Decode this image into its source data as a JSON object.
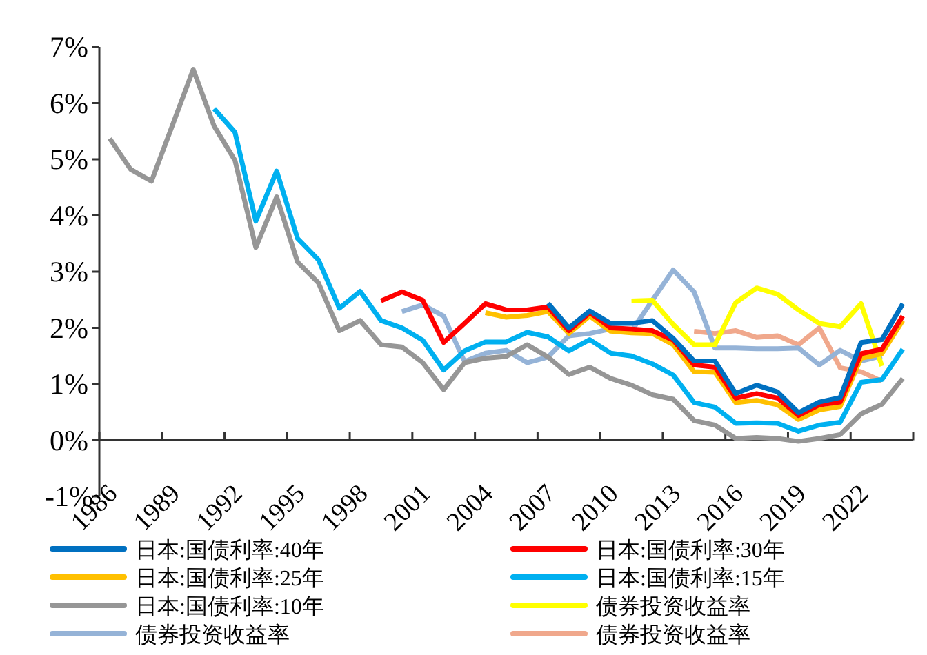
{
  "chart_data": {
    "type": "line",
    "legend": "bottom",
    "grid": false,
    "marker": "none",
    "line_style": "solid",
    "x": [
      1986,
      1987,
      1988,
      1989,
      1990,
      1991,
      1992,
      1993,
      1994,
      1995,
      1996,
      1997,
      1998,
      1999,
      2000,
      2001,
      2002,
      2003,
      2004,
      2005,
      2006,
      2007,
      2008,
      2009,
      2010,
      2011,
      2012,
      2013,
      2014,
      2015,
      2016,
      2017,
      2018,
      2019,
      2020,
      2021,
      2022,
      2023,
      2024
    ],
    "xlim": [
      1985.5,
      2024.5
    ],
    "xticks": [
      {
        "value": 1985.5,
        "label": "1986"
      },
      {
        "value": 1988.5,
        "label": "1989"
      },
      {
        "value": 1991.5,
        "label": "1992"
      },
      {
        "value": 1994.5,
        "label": "1995"
      },
      {
        "value": 1997.5,
        "label": "1998"
      },
      {
        "value": 2000.5,
        "label": "2001"
      },
      {
        "value": 2003.5,
        "label": "2004"
      },
      {
        "value": 2006.5,
        "label": "2007"
      },
      {
        "value": 2009.5,
        "label": "2010"
      },
      {
        "value": 2012.5,
        "label": "2013"
      },
      {
        "value": 2015.5,
        "label": "2016"
      },
      {
        "value": 2018.5,
        "label": "2019"
      },
      {
        "value": 2021.5,
        "label": "2022"
      },
      {
        "value": 2024.5,
        "label": null
      }
    ],
    "ylim": [
      -1,
      7
    ],
    "yticks": [
      {
        "value": -1,
        "label": "-1%"
      },
      {
        "value": 0,
        "label": "0%"
      },
      {
        "value": 1,
        "label": "1%"
      },
      {
        "value": 2,
        "label": "2%"
      },
      {
        "value": 3,
        "label": "3%"
      },
      {
        "value": 4,
        "label": "4%"
      },
      {
        "value": 5,
        "label": "5%"
      },
      {
        "value": 6,
        "label": "6%"
      },
      {
        "value": 7,
        "label": "7%"
      }
    ],
    "series": [
      {
        "name": "日本:国债利率:40年",
        "color": "#0070c0",
        "values": [
          null,
          null,
          null,
          null,
          null,
          null,
          null,
          null,
          null,
          null,
          null,
          null,
          null,
          null,
          null,
          null,
          null,
          null,
          null,
          null,
          null,
          2.44,
          2.0,
          2.3,
          2.08,
          2.08,
          2.13,
          1.81,
          1.41,
          1.41,
          0.83,
          0.98,
          0.86,
          0.49,
          0.68,
          0.76,
          1.74,
          1.79,
          2.43
        ]
      },
      {
        "name": "日本:国债利率:30年",
        "color": "#ff0000",
        "values": [
          null,
          null,
          null,
          null,
          null,
          null,
          null,
          null,
          null,
          null,
          null,
          null,
          null,
          2.48,
          2.64,
          2.49,
          1.74,
          2.08,
          2.43,
          2.32,
          2.32,
          2.37,
          1.95,
          2.27,
          2.0,
          1.98,
          1.95,
          1.78,
          1.34,
          1.3,
          0.75,
          0.83,
          0.75,
          0.44,
          0.63,
          0.68,
          1.54,
          1.62,
          2.21
        ]
      },
      {
        "name": "日本:国债利率:25年",
        "color": "#ffc000",
        "values": [
          null,
          null,
          null,
          null,
          null,
          null,
          null,
          null,
          null,
          null,
          null,
          null,
          null,
          null,
          null,
          null,
          null,
          null,
          2.27,
          2.19,
          2.22,
          2.29,
          1.9,
          2.21,
          1.94,
          1.91,
          1.9,
          1.7,
          1.22,
          1.21,
          0.67,
          0.71,
          0.63,
          0.37,
          0.54,
          0.6,
          1.46,
          1.54,
          2.13
        ]
      },
      {
        "name": "日本:国债利率:15年",
        "color": "#00b0f0",
        "values": [
          null,
          null,
          null,
          null,
          null,
          5.9,
          5.48,
          3.9,
          4.79,
          3.59,
          3.21,
          2.35,
          2.65,
          2.13,
          2.0,
          1.78,
          1.25,
          1.59,
          1.75,
          1.75,
          1.92,
          1.84,
          1.59,
          1.79,
          1.55,
          1.5,
          1.36,
          1.16,
          0.67,
          0.59,
          0.3,
          0.31,
          0.3,
          0.16,
          0.27,
          0.32,
          1.03,
          1.08,
          1.62
        ]
      },
      {
        "name": "日本:国债利率:10年",
        "color": "#969696",
        "values": [
          5.37,
          4.82,
          4.61,
          5.6,
          6.6,
          5.59,
          4.98,
          3.43,
          4.33,
          3.17,
          2.8,
          1.95,
          2.13,
          1.7,
          1.66,
          1.38,
          0.9,
          1.38,
          1.46,
          1.49,
          1.7,
          1.48,
          1.17,
          1.3,
          1.1,
          0.98,
          0.81,
          0.73,
          0.35,
          0.27,
          0.03,
          0.05,
          0.03,
          -0.02,
          0.03,
          0.1,
          0.47,
          0.64,
          1.1
        ]
      },
      {
        "name": "债券投资收益率",
        "color": "#ffff00",
        "values": [
          null,
          null,
          null,
          null,
          null,
          null,
          null,
          null,
          null,
          null,
          null,
          null,
          null,
          null,
          null,
          null,
          null,
          null,
          null,
          null,
          null,
          null,
          null,
          null,
          null,
          2.48,
          2.49,
          2.06,
          1.7,
          1.7,
          2.45,
          2.71,
          2.6,
          2.32,
          2.08,
          2.02,
          2.43,
          1.32,
          null
        ]
      },
      {
        "name": "债券投资收益率",
        "color": "#95b3d7",
        "values": [
          null,
          null,
          null,
          null,
          null,
          null,
          null,
          null,
          null,
          null,
          null,
          null,
          null,
          null,
          2.29,
          2.41,
          2.21,
          1.4,
          1.55,
          1.6,
          1.38,
          1.48,
          1.86,
          1.9,
          1.98,
          1.94,
          2.49,
          3.03,
          2.64,
          1.64,
          1.64,
          1.63,
          1.63,
          1.64,
          1.34,
          1.6,
          1.41,
          1.5,
          null
        ]
      },
      {
        "name": "债券投资收益率",
        "color": "#f0a88c",
        "values": [
          null,
          null,
          null,
          null,
          null,
          null,
          null,
          null,
          null,
          null,
          null,
          null,
          null,
          null,
          null,
          null,
          null,
          null,
          null,
          null,
          null,
          null,
          null,
          null,
          null,
          null,
          null,
          null,
          1.94,
          1.9,
          1.95,
          1.83,
          1.86,
          1.7,
          2.0,
          1.29,
          1.22,
          1.05,
          null
        ]
      }
    ]
  }
}
